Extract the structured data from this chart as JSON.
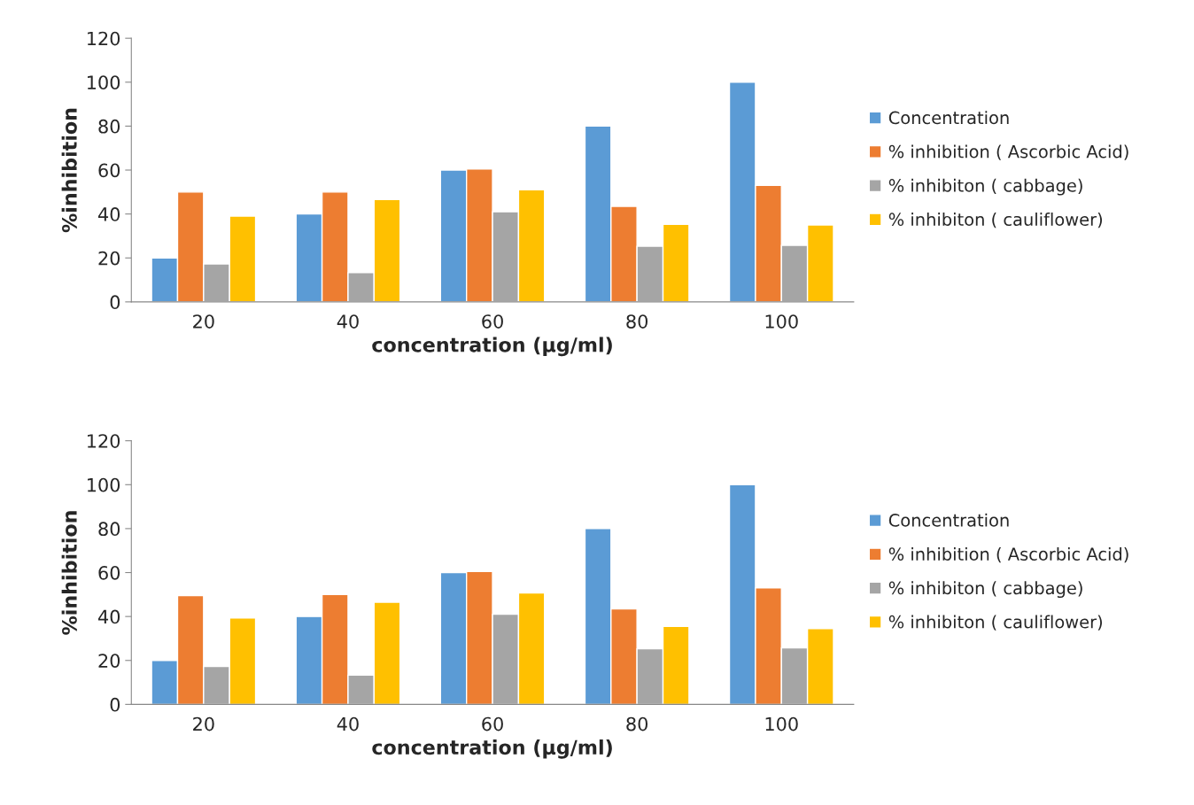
{
  "chart_data": [
    {
      "type": "bar",
      "ylabel": "%inhibition",
      "xlabel": "concentration (µg/ml)",
      "categories": [
        "20",
        "40",
        "60",
        "80",
        "100"
      ],
      "ylim": [
        0,
        120
      ],
      "yticks": [
        0,
        20,
        40,
        60,
        80,
        100,
        120
      ],
      "legend": "right",
      "grid": false,
      "series": [
        {
          "name": "Concentration",
          "color": "#5b9bd5",
          "values": [
            20,
            40,
            60,
            80,
            100
          ]
        },
        {
          "name": "% inhibition ( Ascorbic Acid)",
          "color": "#ed7d31",
          "values": [
            50,
            50,
            60.5,
            43.5,
            53
          ]
        },
        {
          "name": "% inhibiton ( cabbage)",
          "color": "#a5a5a5",
          "values": [
            17.3,
            13.3,
            41,
            25.3,
            25.7
          ]
        },
        {
          "name": "% inhibiton ( cauliflower)",
          "color": "#ffc000",
          "values": [
            39,
            46.6,
            51,
            35.3,
            35
          ]
        }
      ]
    },
    {
      "type": "bar",
      "ylabel": "%inhibition",
      "xlabel": "concentration (µg/ml)",
      "categories": [
        "20",
        "40",
        "60",
        "80",
        "100"
      ],
      "ylim": [
        0,
        120
      ],
      "yticks": [
        0,
        20,
        40,
        60,
        80,
        100,
        120
      ],
      "legend": "right",
      "grid": false,
      "series": [
        {
          "name": "Concentration",
          "color": "#5b9bd5",
          "values": [
            20,
            40,
            60,
            80,
            100
          ]
        },
        {
          "name": "% inhibition ( Ascorbic Acid)",
          "color": "#ed7d31",
          "values": [
            49.5,
            50,
            60.5,
            43.5,
            53
          ]
        },
        {
          "name": "% inhibiton ( cabbage)",
          "color": "#a5a5a5",
          "values": [
            17.3,
            13.3,
            41,
            25.3,
            25.7
          ]
        },
        {
          "name": "% inhibiton ( cauliflower)",
          "color": "#ffc000",
          "values": [
            39.3,
            46.5,
            50.7,
            35.5,
            34.5
          ]
        }
      ]
    }
  ]
}
